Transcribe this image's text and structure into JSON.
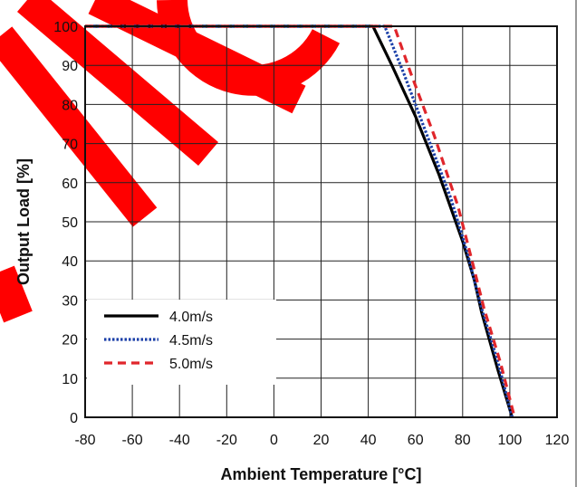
{
  "chart_data": {
    "type": "line",
    "xlabel": "Ambient Temperature [°C]",
    "ylabel": "Output Load [%]",
    "xlim": [
      -80,
      120
    ],
    "ylim": [
      0,
      100
    ],
    "x_ticks": [
      -80,
      -60,
      -40,
      -20,
      0,
      20,
      40,
      60,
      80,
      100,
      120
    ],
    "y_ticks": [
      0,
      10,
      20,
      30,
      40,
      50,
      60,
      70,
      80,
      90,
      100
    ],
    "grid": true,
    "legend_position": "bottom-left",
    "series": [
      {
        "name": "4.0m/s",
        "color": "#000000",
        "style": "solid",
        "x": [
          -80,
          42,
          50,
          60,
          70,
          80,
          85,
          88,
          95,
          101
        ],
        "y": [
          100,
          100,
          90,
          77,
          62,
          45,
          35,
          27,
          12,
          0
        ]
      },
      {
        "name": "4.5m/s",
        "color": "#1a3fa8",
        "style": "dotted",
        "x": [
          -80,
          47,
          55,
          65,
          75,
          82,
          88,
          95,
          101
        ],
        "y": [
          100,
          100,
          88,
          72,
          56,
          42,
          28,
          14,
          0
        ]
      },
      {
        "name": "5.0m/s",
        "color": "#e0262b",
        "style": "dashed",
        "x": [
          -80,
          51,
          58,
          68,
          78,
          84,
          89,
          96,
          102
        ],
        "y": [
          100,
          100,
          88,
          72,
          54,
          40,
          28,
          14,
          0
        ]
      }
    ]
  }
}
